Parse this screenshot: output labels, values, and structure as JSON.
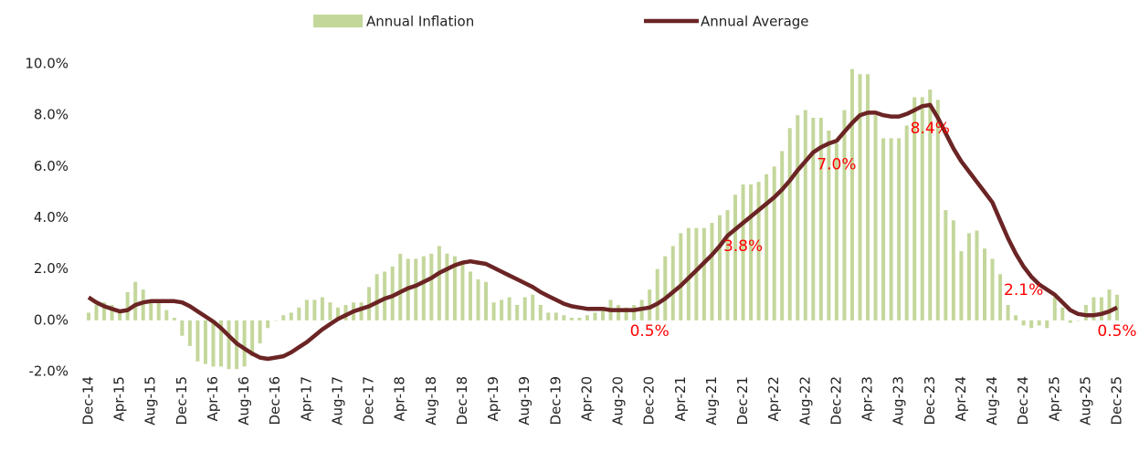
{
  "chart_data": {
    "type": "bar_line",
    "categories": [
      "Dec-14",
      null,
      null,
      null,
      "Apr-15",
      null,
      null,
      null,
      "Aug-15",
      null,
      null,
      null,
      "Dec-15",
      null,
      null,
      null,
      "Apr-16",
      null,
      null,
      null,
      "Aug-16",
      null,
      null,
      null,
      "Dec-16",
      null,
      null,
      null,
      "Apr-17",
      null,
      null,
      null,
      "Aug-17",
      null,
      null,
      null,
      "Dec-17",
      null,
      null,
      null,
      "Apr-18",
      null,
      null,
      null,
      "Aug-18",
      null,
      null,
      null,
      "Dec-18",
      null,
      null,
      null,
      "Apr-19",
      null,
      null,
      null,
      "Aug-19",
      null,
      null,
      null,
      "Dec-19",
      null,
      null,
      null,
      "Apr-20",
      null,
      null,
      null,
      "Aug-20",
      null,
      null,
      null,
      "Dec-20",
      null,
      null,
      null,
      "Apr-21",
      null,
      null,
      null,
      "Aug-21",
      null,
      null,
      null,
      "Dec-21",
      null,
      null,
      null,
      "Apr-22",
      null,
      null,
      null,
      "Aug-22",
      null,
      null,
      null,
      "Dec-22",
      null,
      null,
      null,
      "Apr-23",
      null,
      null,
      null,
      "Aug-23",
      null,
      null,
      null,
      "Dec-23",
      null,
      null,
      null,
      "Apr-24",
      null,
      null,
      null,
      "Aug-24",
      null,
      null,
      null,
      "Dec-24",
      null,
      null,
      null,
      "Apr-25",
      null,
      null,
      null,
      "Aug-25",
      null,
      null,
      null,
      "Dec-25"
    ],
    "series": [
      {
        "name": "Annual Inflation",
        "kind": "bar",
        "color": "#c4d79b",
        "values": [
          0.3,
          0.6,
          0.7,
          0.6,
          0.4,
          1.1,
          1.5,
          1.2,
          0.8,
          0.7,
          0.4,
          0.1,
          -0.6,
          -1.0,
          -1.6,
          -1.7,
          -1.8,
          -1.8,
          -1.9,
          -1.9,
          -1.8,
          -1.4,
          -0.9,
          -0.3,
          0.0,
          0.2,
          0.3,
          0.5,
          0.8,
          0.8,
          0.9,
          0.7,
          0.5,
          0.6,
          0.7,
          0.7,
          1.3,
          1.8,
          1.9,
          2.1,
          2.6,
          2.4,
          2.4,
          2.5,
          2.6,
          2.9,
          2.6,
          2.5,
          2.2,
          1.9,
          1.6,
          1.5,
          0.7,
          0.8,
          0.9,
          0.6,
          0.9,
          1.0,
          0.6,
          0.3,
          0.3,
          0.2,
          0.1,
          0.1,
          0.2,
          0.3,
          0.5,
          0.8,
          0.6,
          0.5,
          0.6,
          0.8,
          1.2,
          2.0,
          2.5,
          2.9,
          3.4,
          3.6,
          3.6,
          3.6,
          3.8,
          4.1,
          4.3,
          4.9,
          5.3,
          5.3,
          5.4,
          5.7,
          6.0,
          6.6,
          7.5,
          8.0,
          8.2,
          7.9,
          7.9,
          7.4,
          6.9,
          8.2,
          9.8,
          9.6,
          9.6,
          8.0,
          7.1,
          7.1,
          7.1,
          7.6,
          8.7,
          8.7,
          9.0,
          8.6,
          4.3,
          3.9,
          2.7,
          3.4,
          3.5,
          2.8,
          2.4,
          1.8,
          0.6,
          0.2,
          -0.2,
          -0.3,
          -0.2,
          -0.3,
          0.9,
          0.5,
          -0.1,
          0.0,
          0.6,
          0.9,
          0.9,
          1.2,
          1.0
        ]
      },
      {
        "name": "Annual Average",
        "kind": "line",
        "color": "#6b2424",
        "values": [
          0.9,
          0.7,
          0.55,
          0.45,
          0.35,
          0.4,
          0.6,
          0.7,
          0.75,
          0.75,
          0.75,
          0.75,
          0.7,
          0.55,
          0.35,
          0.15,
          -0.05,
          -0.3,
          -0.6,
          -0.9,
          -1.1,
          -1.3,
          -1.45,
          -1.5,
          -1.45,
          -1.4,
          -1.25,
          -1.05,
          -0.85,
          -0.6,
          -0.35,
          -0.15,
          0.05,
          0.2,
          0.35,
          0.45,
          0.55,
          0.7,
          0.85,
          0.95,
          1.1,
          1.25,
          1.35,
          1.5,
          1.65,
          1.85,
          2.0,
          2.15,
          2.25,
          2.3,
          2.25,
          2.2,
          2.05,
          1.9,
          1.75,
          1.6,
          1.45,
          1.3,
          1.1,
          0.95,
          0.8,
          0.65,
          0.55,
          0.5,
          0.45,
          0.45,
          0.45,
          0.4,
          0.4,
          0.4,
          0.4,
          0.45,
          0.5,
          0.65,
          0.85,
          1.1,
          1.35,
          1.65,
          1.95,
          2.25,
          2.55,
          2.9,
          3.3,
          3.55,
          3.8,
          4.05,
          4.3,
          4.55,
          4.8,
          5.1,
          5.45,
          5.85,
          6.2,
          6.55,
          6.75,
          6.9,
          7.0,
          7.35,
          7.7,
          8.0,
          8.1,
          8.1,
          8.0,
          7.95,
          7.95,
          8.05,
          8.2,
          8.35,
          8.4,
          7.9,
          7.3,
          6.7,
          6.2,
          5.8,
          5.4,
          5.0,
          4.6,
          3.9,
          3.2,
          2.6,
          2.1,
          1.7,
          1.4,
          1.2,
          1.0,
          0.7,
          0.4,
          0.25,
          0.2,
          0.2,
          0.25,
          0.35,
          0.5
        ],
        "value_labels": [
          null,
          null,
          null,
          null,
          null,
          null,
          null,
          null,
          null,
          null,
          null,
          null,
          null,
          null,
          null,
          null,
          null,
          null,
          null,
          null,
          null,
          null,
          null,
          null,
          null,
          null,
          null,
          null,
          null,
          null,
          null,
          null,
          null,
          null,
          null,
          null,
          null,
          null,
          null,
          null,
          null,
          null,
          null,
          null,
          null,
          null,
          null,
          null,
          null,
          null,
          null,
          null,
          null,
          null,
          null,
          null,
          null,
          null,
          null,
          null,
          null,
          null,
          null,
          null,
          null,
          null,
          null,
          null,
          null,
          null,
          null,
          null,
          "0.5%",
          null,
          null,
          null,
          null,
          null,
          null,
          null,
          null,
          null,
          null,
          null,
          "3.8%",
          null,
          null,
          null,
          null,
          null,
          null,
          null,
          null,
          null,
          null,
          null,
          "7.0%",
          null,
          null,
          null,
          null,
          null,
          null,
          null,
          null,
          null,
          null,
          null,
          "8.4%",
          null,
          null,
          null,
          null,
          null,
          null,
          null,
          null,
          null,
          null,
          null,
          "2.1%",
          null,
          null,
          null,
          null,
          null,
          null,
          null,
          null,
          null,
          null,
          null,
          "0.5%"
        ]
      }
    ],
    "ylim": [
      -2,
      10
    ],
    "yticks": [
      {
        "value": -2,
        "label": "-2.0%"
      },
      {
        "value": 0,
        "label": "0.0%"
      },
      {
        "value": 2,
        "label": "2.0%"
      },
      {
        "value": 4,
        "label": "4.0%"
      },
      {
        "value": 6,
        "label": "6.0%"
      },
      {
        "value": 8,
        "label": "8.0%"
      },
      {
        "value": 10,
        "label": "10.0%"
      }
    ],
    "legend": "top"
  }
}
